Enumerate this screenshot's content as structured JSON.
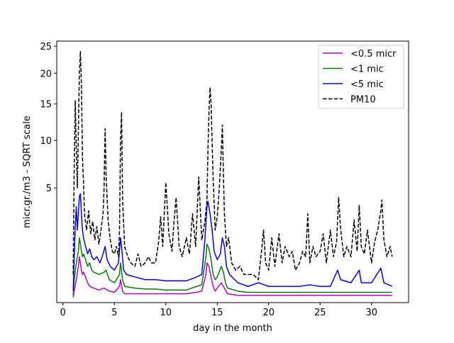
{
  "chart_data": {
    "type": "line",
    "title": "",
    "xlabel": "day in the month",
    "ylabel": "micr.gr./m3 - SQRT scale",
    "xlim": [
      -0.6,
      33.6
    ],
    "ylim": [
      0,
      26
    ],
    "y_scale": "sqrt",
    "x_ticks": [
      0,
      5,
      10,
      15,
      20,
      25,
      30
    ],
    "x_tick_labels": [
      "0",
      "5",
      "10",
      "15",
      "20",
      "25",
      "30"
    ],
    "y_ticks": [
      5,
      10,
      15,
      20,
      25
    ],
    "y_tick_labels": [
      "5",
      "10",
      "15",
      "20",
      "25"
    ],
    "legend_position": "upper right",
    "grid": false,
    "series": [
      {
        "name": "<0.5 micr",
        "color": "#bf00bf",
        "style": "solid",
        "x": [
          1.0,
          1.1,
          1.3,
          1.5,
          1.6,
          1.7,
          1.8,
          1.9,
          2.0,
          2.2,
          2.4,
          2.6,
          3.0,
          3.5,
          4.0,
          4.5,
          5.0,
          5.5,
          5.6,
          5.8,
          6.0,
          7.0,
          8.0,
          9.0,
          10.0,
          11.0,
          12.0,
          13.0,
          13.5,
          13.9,
          14.0,
          14.2,
          14.4,
          14.6,
          14.8,
          15.0,
          15.4,
          15.6,
          16.0,
          17.0,
          18.0,
          20.0,
          22.0,
          24.0,
          26.0,
          28.0,
          30.0,
          32.0
        ],
        "y": [
          0.01,
          0.05,
          0.2,
          0.5,
          0.8,
          0.6,
          0.4,
          0.3,
          0.35,
          0.25,
          0.15,
          0.1,
          0.08,
          0.06,
          0.08,
          0.05,
          0.04,
          0.1,
          0.2,
          0.05,
          0.03,
          0.03,
          0.03,
          0.03,
          0.03,
          0.03,
          0.03,
          0.04,
          0.05,
          0.3,
          0.6,
          0.5,
          0.25,
          0.1,
          0.05,
          0.08,
          0.15,
          0.1,
          0.03,
          0.02,
          0.02,
          0.02,
          0.02,
          0.02,
          0.02,
          0.02,
          0.02,
          0.02
        ]
      },
      {
        "name": "<1 mic",
        "color": "#008000",
        "style": "solid",
        "x": [
          1.0,
          1.1,
          1.3,
          1.5,
          1.6,
          1.7,
          1.8,
          1.9,
          2.0,
          2.2,
          2.4,
          2.6,
          2.8,
          3.0,
          3.5,
          4.0,
          4.2,
          4.5,
          5.0,
          5.5,
          5.6,
          5.8,
          6.0,
          7.0,
          8.0,
          9.0,
          10.0,
          11.0,
          12.0,
          13.0,
          13.5,
          13.9,
          14.0,
          14.2,
          14.4,
          14.6,
          14.8,
          15.0,
          15.4,
          15.6,
          15.8,
          16.0,
          17.0,
          18.0,
          20.0,
          22.0,
          24.0,
          26.0,
          28.0,
          30.0,
          32.0
        ],
        "y": [
          0.02,
          0.2,
          0.6,
          1.0,
          1.6,
          1.3,
          1.0,
          0.8,
          0.9,
          0.7,
          0.5,
          0.6,
          0.4,
          0.35,
          0.3,
          0.35,
          0.4,
          0.2,
          0.15,
          0.3,
          0.6,
          0.2,
          0.1,
          0.08,
          0.07,
          0.07,
          0.06,
          0.06,
          0.06,
          0.1,
          0.12,
          0.8,
          1.3,
          1.1,
          0.7,
          0.3,
          0.2,
          0.25,
          0.5,
          0.35,
          0.15,
          0.08,
          0.05,
          0.04,
          0.04,
          0.04,
          0.04,
          0.04,
          0.04,
          0.04,
          0.04
        ]
      },
      {
        "name": "<5 mic",
        "color": "#0000ff",
        "style": "solid",
        "x": [
          1.0,
          1.1,
          1.2,
          1.3,
          1.4,
          1.5,
          1.6,
          1.7,
          1.8,
          1.9,
          2.0,
          2.2,
          2.4,
          2.6,
          2.8,
          3.0,
          3.3,
          3.6,
          3.9,
          4.1,
          4.3,
          4.6,
          5.0,
          5.4,
          5.6,
          5.7,
          5.9,
          6.2,
          7.0,
          8.0,
          9.0,
          10.0,
          11.0,
          12.0,
          13.0,
          13.5,
          13.8,
          14.0,
          14.1,
          14.3,
          14.5,
          14.7,
          15.0,
          15.3,
          15.5,
          15.7,
          15.9,
          16.2,
          17.0,
          18.0,
          19.0,
          20.0,
          21.0,
          22.0,
          23.0,
          24.0,
          25.0,
          26.0,
          26.7,
          27.0,
          28.0,
          28.8,
          29.0,
          30.0,
          30.9,
          31.2,
          32.0
        ],
        "y": [
          0.05,
          0.8,
          2.2,
          3.5,
          2.0,
          3.0,
          4.3,
          4.5,
          3.0,
          2.0,
          1.6,
          1.2,
          0.9,
          1.1,
          0.8,
          0.7,
          0.8,
          0.6,
          0.9,
          1.2,
          0.7,
          0.5,
          0.4,
          0.6,
          1.6,
          1.2,
          0.4,
          0.3,
          0.25,
          0.2,
          0.2,
          0.18,
          0.18,
          0.18,
          0.25,
          0.3,
          1.5,
          3.5,
          3.9,
          3.0,
          2.0,
          1.0,
          0.7,
          0.9,
          1.6,
          1.2,
          0.5,
          0.3,
          0.15,
          0.1,
          0.15,
          0.1,
          0.1,
          0.1,
          0.1,
          0.12,
          0.1,
          0.1,
          0.4,
          0.2,
          0.15,
          0.4,
          0.15,
          0.15,
          0.45,
          0.15,
          0.1
        ]
      },
      {
        "name": "PM10",
        "color": "#000000",
        "style": "dashed",
        "x": [
          1.0,
          1.1,
          1.2,
          1.3,
          1.4,
          1.5,
          1.6,
          1.7,
          1.8,
          1.9,
          2.0,
          2.1,
          2.3,
          2.5,
          2.7,
          2.9,
          3.1,
          3.3,
          3.5,
          3.7,
          3.9,
          4.0,
          4.1,
          4.2,
          4.4,
          4.6,
          4.8,
          5.0,
          5.2,
          5.4,
          5.5,
          5.6,
          5.7,
          5.8,
          6.0,
          6.3,
          6.6,
          7.0,
          7.3,
          7.6,
          8.0,
          8.3,
          8.6,
          9.0,
          9.3,
          9.5,
          9.7,
          10.0,
          10.3,
          10.6,
          10.8,
          11.0,
          11.3,
          11.6,
          12.0,
          12.3,
          12.6,
          12.9,
          13.2,
          13.5,
          13.8,
          14.0,
          14.1,
          14.2,
          14.3,
          14.4,
          14.5,
          14.6,
          14.8,
          15.0,
          15.2,
          15.4,
          15.5,
          15.6,
          15.7,
          15.9,
          16.1,
          16.4,
          16.8,
          17.2,
          17.6,
          18.0,
          18.5,
          19.0,
          19.3,
          19.5,
          19.7,
          20.0,
          20.3,
          20.6,
          21.0,
          21.3,
          21.6,
          22.0,
          22.3,
          22.6,
          23.0,
          23.3,
          23.6,
          23.8,
          24.0,
          24.3,
          24.6,
          25.0,
          25.3,
          25.6,
          26.0,
          26.3,
          26.6,
          26.8,
          27.0,
          27.3,
          27.6,
          28.0,
          28.3,
          28.6,
          28.8,
          29.0,
          29.3,
          29.6,
          30.0,
          30.3,
          30.6,
          30.9,
          31.0,
          31.2,
          31.5,
          31.8,
          32.0
        ],
        "y": [
          0.3,
          7.5,
          15.5,
          9.0,
          5.0,
          11.0,
          20.0,
          24.0,
          18.0,
          8.0,
          5.5,
          3.0,
          2.0,
          3.2,
          1.8,
          2.5,
          1.5,
          2.2,
          1.3,
          2.0,
          3.0,
          5.0,
          11.5,
          6.0,
          2.5,
          1.5,
          1.0,
          0.9,
          1.2,
          0.8,
          2.0,
          10.0,
          13.8,
          4.0,
          1.2,
          0.8,
          0.6,
          0.5,
          0.9,
          0.5,
          0.6,
          0.8,
          0.6,
          0.6,
          1.4,
          2.8,
          1.2,
          5.5,
          1.8,
          1.0,
          2.5,
          4.2,
          1.2,
          0.8,
          1.6,
          0.9,
          3.0,
          1.2,
          6.0,
          1.5,
          2.5,
          4.0,
          9.0,
          14.0,
          17.6,
          15.0,
          10.0,
          6.0,
          2.0,
          2.8,
          5.0,
          9.0,
          12.0,
          6.0,
          3.0,
          1.2,
          1.6,
          0.6,
          0.4,
          0.5,
          0.3,
          0.3,
          0.3,
          0.2,
          1.0,
          2.0,
          0.6,
          0.4,
          1.6,
          0.5,
          1.8,
          0.6,
          1.2,
          0.8,
          1.0,
          0.4,
          0.6,
          1.0,
          0.8,
          3.0,
          0.6,
          1.2,
          0.8,
          1.0,
          1.8,
          0.6,
          2.0,
          0.8,
          1.4,
          4.2,
          2.0,
          0.8,
          1.2,
          0.8,
          2.6,
          1.0,
          3.6,
          1.2,
          0.9,
          2.0,
          0.6,
          1.4,
          2.0,
          3.2,
          4.0,
          1.5,
          0.8,
          1.2,
          0.8
        ]
      }
    ]
  }
}
